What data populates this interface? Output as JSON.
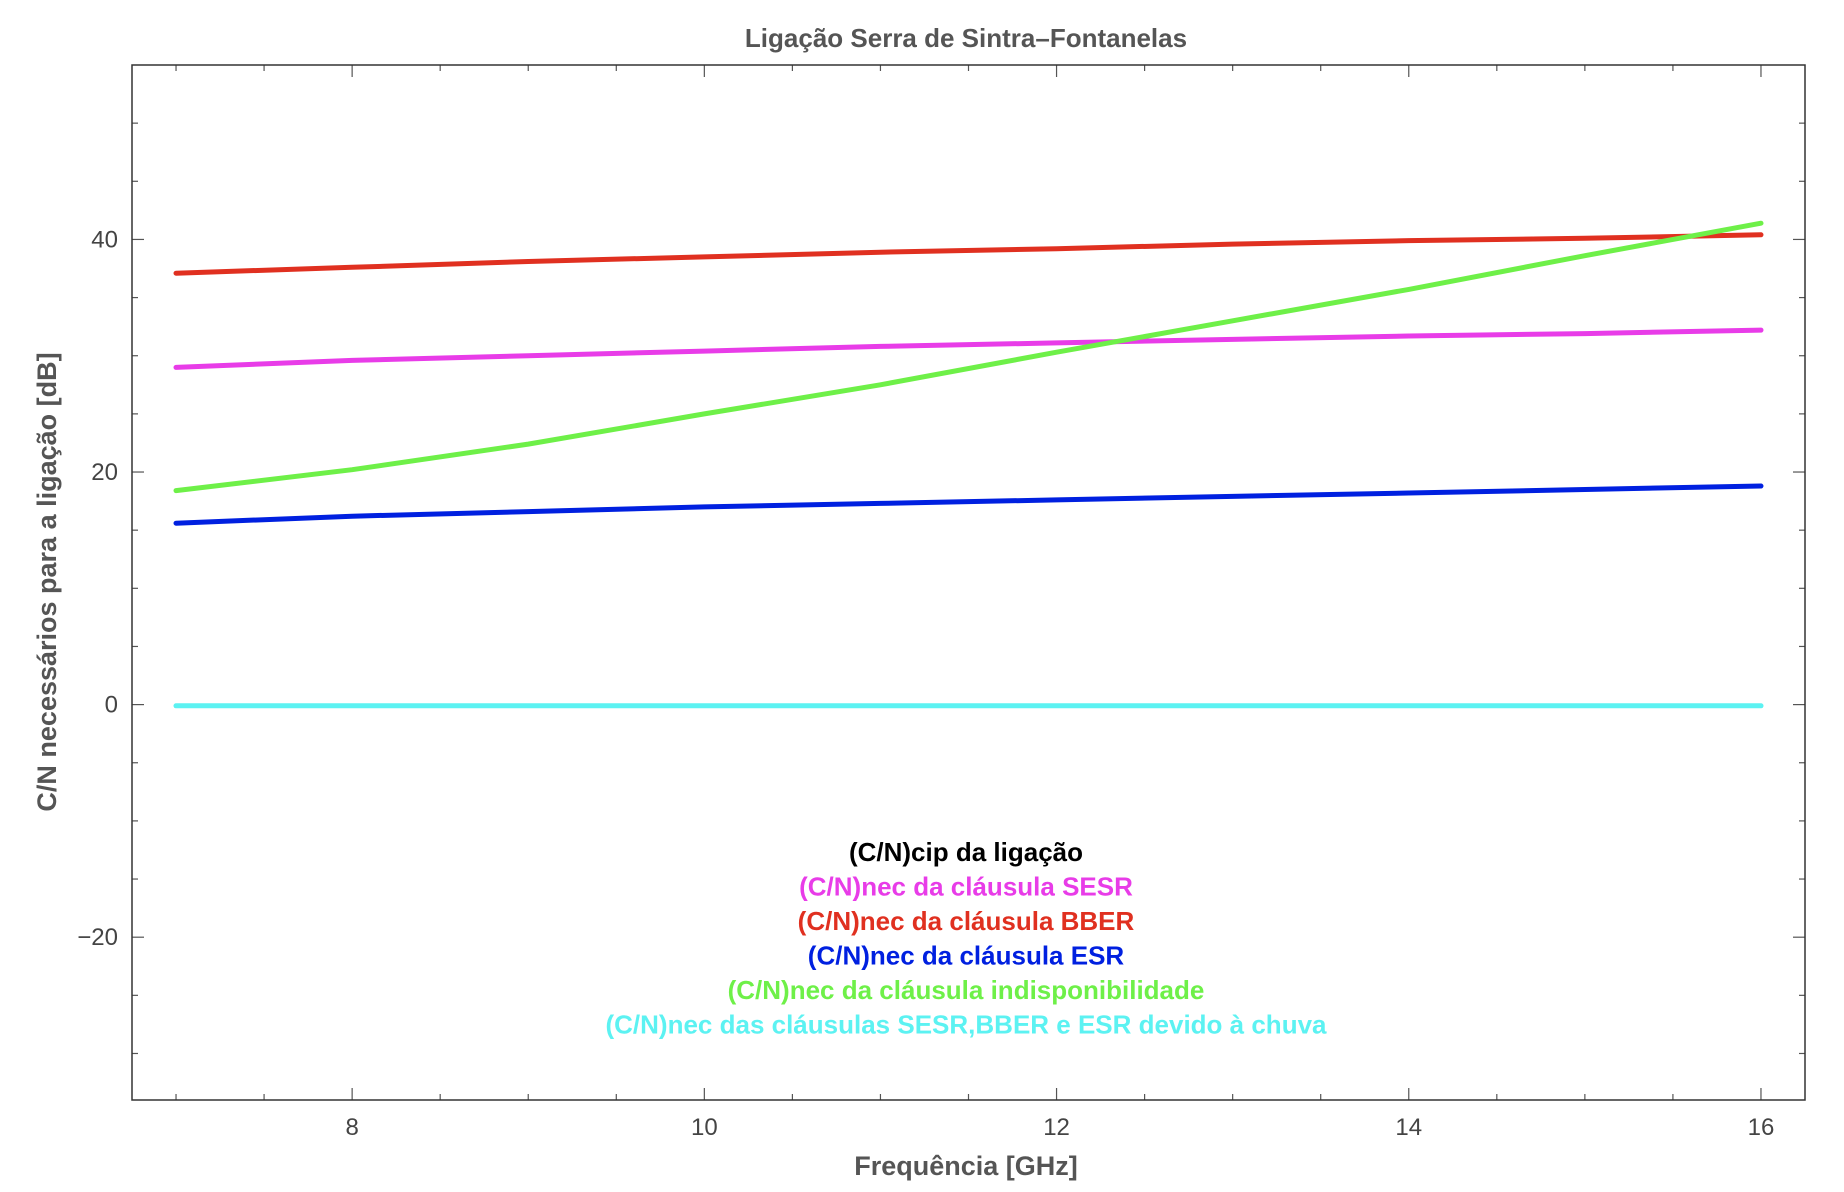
{
  "chart_data": {
    "type": "line",
    "title": "Ligação Serra de Sintra–Fontanelas",
    "xlabel": "Frequência [GHz]",
    "ylabel": "C/N necessários  para a ligação [dB]",
    "xlim": [
      6.75,
      16.25
    ],
    "ylim": [
      -34,
      55
    ],
    "x_ticks": [
      8,
      10,
      12,
      14,
      16
    ],
    "y_ticks": [
      -20,
      0,
      20,
      40
    ],
    "x_tick_labels": [
      "8",
      "10",
      "12",
      "14",
      "16"
    ],
    "y_tick_labels": [
      "−20",
      "0",
      "20",
      "40"
    ],
    "grid": false,
    "legend_position": "lower-center",
    "series": [
      {
        "name": "(C/N)cip da ligação",
        "color": "#000000",
        "x": [],
        "y": []
      },
      {
        "name": "(C/N)nec da cláusula SESR",
        "color": "#e83ce8",
        "x": [
          7,
          8,
          9,
          10,
          11,
          12,
          13,
          14,
          15,
          16
        ],
        "y": [
          29.0,
          29.6,
          30.0,
          30.4,
          30.8,
          31.1,
          31.4,
          31.7,
          31.9,
          32.2
        ]
      },
      {
        "name": "(C/N)nec da cláusula BBER",
        "color": "#e03020",
        "x": [
          7,
          8,
          9,
          10,
          11,
          12,
          13,
          14,
          15,
          16
        ],
        "y": [
          37.1,
          37.6,
          38.1,
          38.5,
          38.9,
          39.2,
          39.6,
          39.9,
          40.1,
          40.4
        ]
      },
      {
        "name": "(C/N)nec da cláusula ESR",
        "color": "#0020e0",
        "x": [
          7,
          8,
          9,
          10,
          11,
          12,
          13,
          14,
          15,
          16
        ],
        "y": [
          15.6,
          16.2,
          16.6,
          17.0,
          17.3,
          17.6,
          17.9,
          18.2,
          18.5,
          18.8
        ]
      },
      {
        "name": "(C/N)nec da cláusula indisponibilidade",
        "color": "#6ef048",
        "x": [
          7,
          8,
          9,
          10,
          11,
          12,
          13,
          14,
          15,
          16
        ],
        "y": [
          18.4,
          20.2,
          22.4,
          25.0,
          27.5,
          30.3,
          33.0,
          35.7,
          38.6,
          41.4
        ]
      },
      {
        "name": "(C/N)nec das cláusulas SESR,BBER e ESR devido à chuva",
        "color": "#5cf2f2",
        "x": [
          7,
          8,
          9,
          10,
          11,
          12,
          13,
          14,
          15,
          16
        ],
        "y": [
          -0.1,
          -0.1,
          -0.1,
          -0.1,
          -0.1,
          -0.1,
          -0.1,
          -0.1,
          -0.1,
          -0.1
        ]
      }
    ]
  }
}
